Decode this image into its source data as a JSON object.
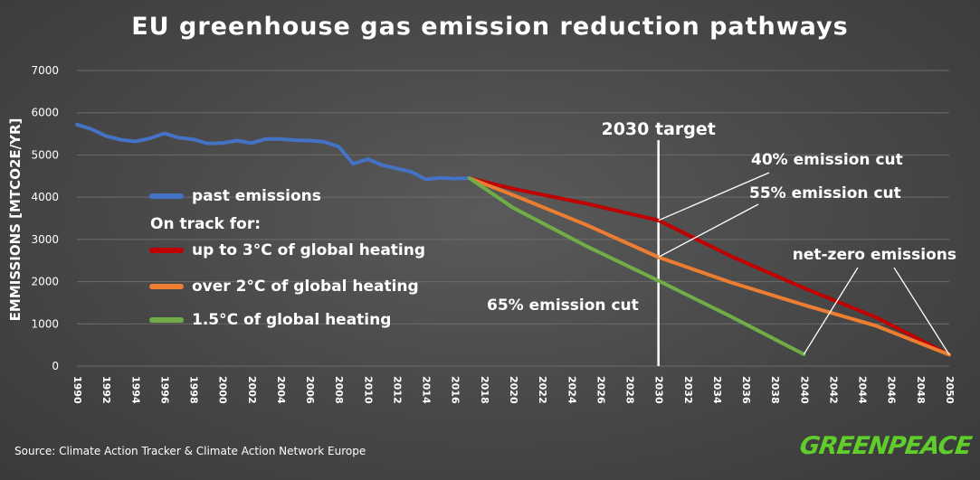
{
  "chart_data": {
    "type": "line",
    "title": "EU greenhouse gas emission reduction pathways",
    "xlabel": "",
    "ylabel": "EMMISSIONS [MTCO2E/YR]",
    "xlim": [
      1990,
      2050
    ],
    "ylim": [
      0,
      7000
    ],
    "y_ticks": [
      0,
      1000,
      2000,
      3000,
      4000,
      5000,
      6000,
      7000
    ],
    "x_ticks": [
      1990,
      1992,
      1994,
      1996,
      1998,
      2000,
      2002,
      2004,
      2006,
      2008,
      2010,
      2012,
      2014,
      2016,
      2018,
      2020,
      2022,
      2024,
      2026,
      2028,
      2030,
      2032,
      2034,
      2036,
      2038,
      2040,
      2042,
      2044,
      2046,
      2048,
      2050
    ],
    "grid": "horizontal",
    "legend_header": "On track for:",
    "series": [
      {
        "name": "past emissions",
        "color": "#4472c4",
        "x": [
          1990,
          1991,
          1992,
          1993,
          1994,
          1995,
          1996,
          1997,
          1998,
          1999,
          2000,
          2001,
          2002,
          2003,
          2004,
          2005,
          2006,
          2007,
          2008,
          2009,
          2010,
          2011,
          2012,
          2013,
          2014,
          2015,
          2016,
          2017
        ],
        "y": [
          5720,
          5610,
          5450,
          5360,
          5320,
          5390,
          5510,
          5410,
          5370,
          5270,
          5280,
          5340,
          5280,
          5380,
          5380,
          5350,
          5340,
          5310,
          5200,
          4790,
          4900,
          4760,
          4680,
          4600,
          4420,
          4460,
          4440,
          4450
        ]
      },
      {
        "name": "up to 3°C of global heating",
        "color": "#c00000",
        "x": [
          2017,
          2020,
          2025,
          2030,
          2035,
          2040,
          2045,
          2050
        ],
        "y": [
          4450,
          4200,
          3850,
          3450,
          2600,
          1850,
          1150,
          270
        ]
      },
      {
        "name": "over 2°C of global heating",
        "color": "#ed7d31",
        "x": [
          2017,
          2020,
          2025,
          2030,
          2035,
          2040,
          2045,
          2050
        ],
        "y": [
          4450,
          4050,
          3350,
          2580,
          1980,
          1450,
          950,
          270
        ]
      },
      {
        "name": "1.5°C of global heating",
        "color": "#70ad47",
        "x": [
          2017,
          2020,
          2025,
          2030,
          2035,
          2040
        ],
        "y": [
          4450,
          3750,
          2850,
          2020,
          1170,
          280
        ]
      }
    ],
    "target_line": {
      "x": 2030,
      "label": "2030 target"
    },
    "annotations": [
      {
        "text": "40% emission cut",
        "point": [
          2030,
          3450
        ]
      },
      {
        "text": "55% emission cut",
        "point": [
          2030,
          2580
        ]
      },
      {
        "text": "65% emission cut",
        "point": [
          2030,
          2020
        ]
      },
      {
        "text": "net-zero emissions",
        "points": [
          [
            2040,
            280
          ],
          [
            2050,
            270
          ]
        ]
      }
    ]
  },
  "source_note": "Source: Climate Action Tracker & Climate Action Network Europe",
  "brand": "GREENPEACE"
}
